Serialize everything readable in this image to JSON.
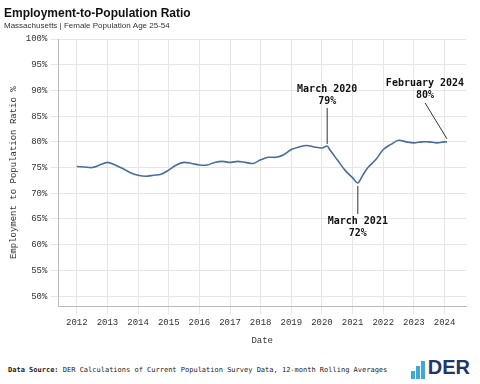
{
  "chart_data": {
    "type": "line",
    "title": "Employment-to-Population Ratio",
    "subtitle": "Massachusetts | Female Population Age 25-54",
    "x_label": "Date",
    "y_label": "Employment to Population Ratio %",
    "color": "#4a6d9c",
    "grid": true,
    "x": [
      2012.0,
      2012.25,
      2012.5,
      2012.75,
      2013.0,
      2013.25,
      2013.5,
      2013.75,
      2014.0,
      2014.25,
      2014.5,
      2014.75,
      2015.0,
      2015.25,
      2015.5,
      2015.75,
      2016.0,
      2016.25,
      2016.5,
      2016.75,
      2017.0,
      2017.25,
      2017.5,
      2017.75,
      2018.0,
      2018.25,
      2018.5,
      2018.75,
      2019.0,
      2019.25,
      2019.5,
      2019.75,
      2020.0,
      2020.17,
      2020.25,
      2020.5,
      2020.75,
      2021.0,
      2021.17,
      2021.33,
      2021.5,
      2021.75,
      2022.0,
      2022.25,
      2022.5,
      2022.75,
      2023.0,
      2023.25,
      2023.5,
      2023.75,
      2024.0,
      2024.08
    ],
    "values": [
      75.2,
      75.1,
      75.0,
      75.5,
      76.0,
      75.5,
      74.8,
      74.0,
      73.5,
      73.3,
      73.5,
      73.7,
      74.5,
      75.5,
      76.0,
      75.8,
      75.5,
      75.5,
      76.0,
      76.2,
      76.0,
      76.2,
      76.0,
      75.8,
      76.5,
      77.0,
      77.0,
      77.5,
      78.5,
      79.0,
      79.3,
      79.0,
      78.8,
      79.2,
      78.5,
      76.5,
      74.5,
      73.0,
      72.0,
      73.5,
      75.0,
      76.5,
      78.5,
      79.5,
      80.3,
      80.0,
      79.8,
      80.0,
      80.0,
      79.8,
      80.0,
      80.0
    ],
    "xlim": [
      2011.4,
      2024.7
    ],
    "xticks": [
      2012,
      2013,
      2014,
      2015,
      2016,
      2017,
      2018,
      2019,
      2020,
      2021,
      2022,
      2023,
      2024
    ],
    "ylim": [
      48,
      100
    ],
    "yticks": [
      {
        "value": 50,
        "label": "50%"
      },
      {
        "value": 55,
        "label": "55%"
      },
      {
        "value": 60,
        "label": "60%"
      },
      {
        "value": 65,
        "label": "65%"
      },
      {
        "value": 70,
        "label": "70%"
      },
      {
        "value": 75,
        "label": "75%"
      },
      {
        "value": 80,
        "label": "80%"
      },
      {
        "value": 85,
        "label": "85%"
      },
      {
        "value": 90,
        "label": "90%"
      },
      {
        "value": 95,
        "label": "95%"
      },
      {
        "value": 100,
        "label": "100%"
      }
    ],
    "annotations": [
      {
        "label": "March 2020",
        "x": 2020.17,
        "y": 79,
        "value_label": "79%"
      },
      {
        "label": "March 2021",
        "x": 2021.17,
        "y": 72,
        "value_label": "72%"
      },
      {
        "label": "February 2024",
        "x": 2024.08,
        "y": 80,
        "value_label": "80%"
      }
    ],
    "source_label": "Data Source:",
    "source": "DER Calculations of Current Population Survey Data, 12-month Rolling Averages",
    "logo": "DER"
  }
}
